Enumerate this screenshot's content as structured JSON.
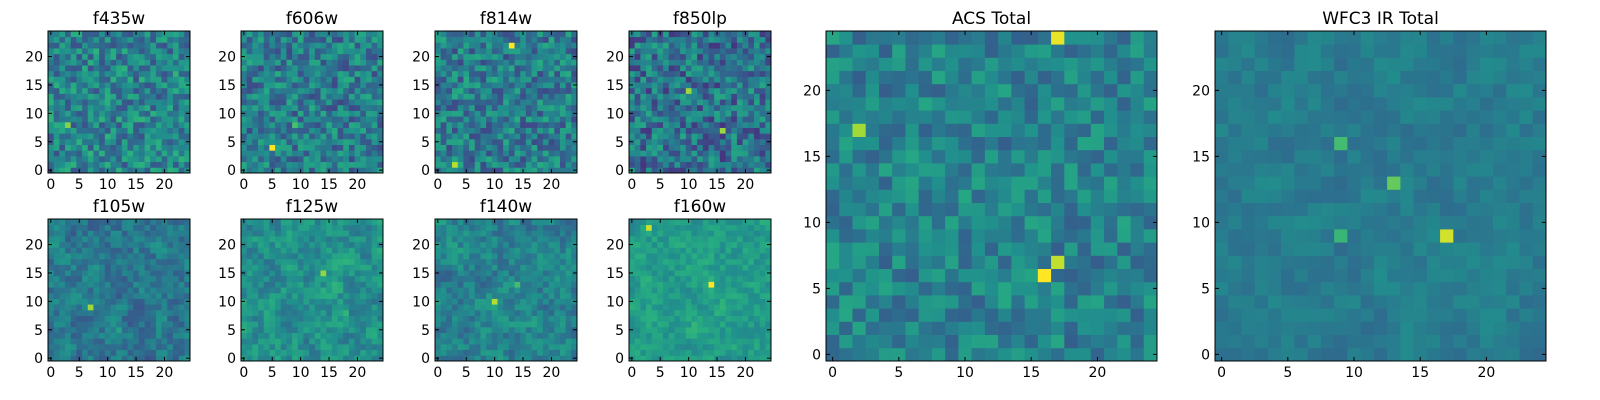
{
  "chart_data": [
    {
      "type": "heatmap",
      "title": "f435w",
      "xticks": [
        "0",
        "5",
        "10",
        "15",
        "20"
      ],
      "yticks": [
        "0",
        "5",
        "10",
        "15",
        "20"
      ],
      "xlim": [
        0,
        25
      ],
      "ylim": [
        0,
        25
      ],
      "grid": false,
      "colormap": "viridis",
      "mean": 0.45,
      "spread": 0.2,
      "smooth": 0,
      "hotspots": [
        [
          17,
          4,
          0.35
        ],
        [
          3,
          8,
          0.3
        ]
      ]
    },
    {
      "type": "heatmap",
      "title": "f606w",
      "xticks": [
        "0",
        "5",
        "10",
        "15",
        "20"
      ],
      "yticks": [
        "0",
        "5",
        "10",
        "15",
        "20"
      ],
      "xlim": [
        0,
        25
      ],
      "ylim": [
        0,
        25
      ],
      "grid": false,
      "colormap": "viridis",
      "mean": 0.42,
      "spread": 0.2,
      "smooth": 0,
      "hotspots": [
        [
          5,
          4,
          0.5
        ],
        [
          9,
          8,
          0.3
        ]
      ]
    },
    {
      "type": "heatmap",
      "title": "f814w",
      "xticks": [
        "0",
        "5",
        "10",
        "15",
        "20"
      ],
      "yticks": [
        "0",
        "5",
        "10",
        "15",
        "20"
      ],
      "xlim": [
        0,
        25
      ],
      "ylim": [
        0,
        25
      ],
      "grid": false,
      "colormap": "viridis",
      "mean": 0.42,
      "spread": 0.2,
      "smooth": 0,
      "hotspots": [
        [
          13,
          22,
          0.5
        ],
        [
          3,
          1,
          0.4
        ]
      ]
    },
    {
      "type": "heatmap",
      "title": "f850lp",
      "xticks": [
        "0",
        "5",
        "10",
        "15",
        "20"
      ],
      "yticks": [
        "0",
        "5",
        "10",
        "15",
        "20"
      ],
      "xlim": [
        0,
        25
      ],
      "ylim": [
        0,
        25
      ],
      "grid": false,
      "colormap": "viridis",
      "mean": 0.38,
      "spread": 0.22,
      "smooth": 0,
      "hotspots": [
        [
          10,
          14,
          0.55
        ],
        [
          16,
          7,
          0.4
        ]
      ]
    },
    {
      "type": "heatmap",
      "title": "f105w",
      "xticks": [
        "0",
        "5",
        "10",
        "15",
        "20"
      ],
      "yticks": [
        "0",
        "5",
        "10",
        "15",
        "20"
      ],
      "xlim": [
        0,
        25
      ],
      "ylim": [
        0,
        25
      ],
      "grid": false,
      "colormap": "viridis",
      "mean": 0.4,
      "spread": 0.2,
      "smooth": 1,
      "hotspots": [
        [
          7,
          9,
          0.4
        ],
        [
          12,
          5,
          0.25
        ]
      ]
    },
    {
      "type": "heatmap",
      "title": "f125w",
      "xticks": [
        "0",
        "5",
        "10",
        "15",
        "20"
      ],
      "yticks": [
        "0",
        "5",
        "10",
        "15",
        "20"
      ],
      "xlim": [
        0,
        25
      ],
      "ylim": [
        0,
        25
      ],
      "grid": false,
      "colormap": "viridis",
      "mean": 0.5,
      "spread": 0.2,
      "smooth": 1,
      "hotspots": [
        [
          14,
          15,
          0.3
        ],
        [
          18,
          8,
          0.25
        ]
      ]
    },
    {
      "type": "heatmap",
      "title": "f140w",
      "xticks": [
        "0",
        "5",
        "10",
        "15",
        "20"
      ],
      "yticks": [
        "0",
        "5",
        "10",
        "15",
        "20"
      ],
      "xlim": [
        0,
        25
      ],
      "ylim": [
        0,
        25
      ],
      "grid": false,
      "colormap": "viridis",
      "mean": 0.45,
      "spread": 0.2,
      "smooth": 1,
      "hotspots": [
        [
          10,
          10,
          0.35
        ],
        [
          14,
          13,
          0.3
        ]
      ]
    },
    {
      "type": "heatmap",
      "title": "f160w",
      "xticks": [
        "0",
        "5",
        "10",
        "15",
        "20"
      ],
      "yticks": [
        "0",
        "5",
        "10",
        "15",
        "20"
      ],
      "xlim": [
        0,
        25
      ],
      "ylim": [
        0,
        25
      ],
      "grid": false,
      "colormap": "viridis",
      "mean": 0.55,
      "spread": 0.15,
      "smooth": 1,
      "hotspots": [
        [
          14,
          13,
          0.45
        ],
        [
          3,
          23,
          0.4
        ]
      ]
    },
    {
      "type": "heatmap",
      "title": "ACS Total",
      "xticks": [
        "0",
        "5",
        "10",
        "15",
        "20"
      ],
      "yticks": [
        "0",
        "5",
        "10",
        "15",
        "20"
      ],
      "xlim": [
        0,
        25
      ],
      "ylim": [
        0,
        25
      ],
      "grid": false,
      "colormap": "viridis",
      "mean": 0.45,
      "spread": 0.15,
      "smooth": 0,
      "hotspots": [
        [
          16,
          6,
          0.55
        ],
        [
          17,
          7,
          0.5
        ],
        [
          17,
          24,
          0.45
        ],
        [
          2,
          17,
          0.35
        ]
      ]
    },
    {
      "type": "heatmap",
      "title": "WFC3 IR Total",
      "xticks": [
        "0",
        "5",
        "10",
        "15",
        "20"
      ],
      "yticks": [
        "0",
        "5",
        "10",
        "15",
        "20"
      ],
      "xlim": [
        0,
        25
      ],
      "ylim": [
        0,
        25
      ],
      "grid": false,
      "colormap": "viridis",
      "mean": 0.42,
      "spread": 0.1,
      "smooth": 1,
      "hotspots": [
        [
          17,
          9,
          0.5
        ],
        [
          13,
          13,
          0.35
        ],
        [
          9,
          16,
          0.3
        ],
        [
          9,
          9,
          0.3
        ]
      ]
    }
  ]
}
